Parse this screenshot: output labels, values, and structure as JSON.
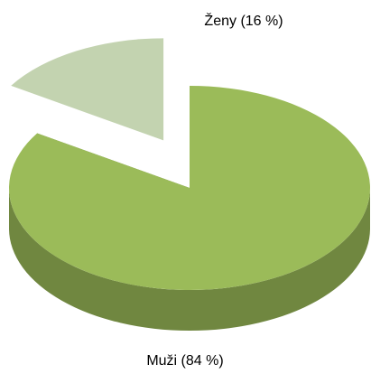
{
  "chart_data": {
    "type": "pie",
    "three_d": true,
    "values": [
      84,
      16
    ],
    "value_labels": [
      "Muži (84 %)",
      "Ženy (16 %)"
    ],
    "colors": [
      "#9bbb59",
      "#c3d3b0"
    ],
    "exploded": [
      false,
      true
    ]
  }
}
